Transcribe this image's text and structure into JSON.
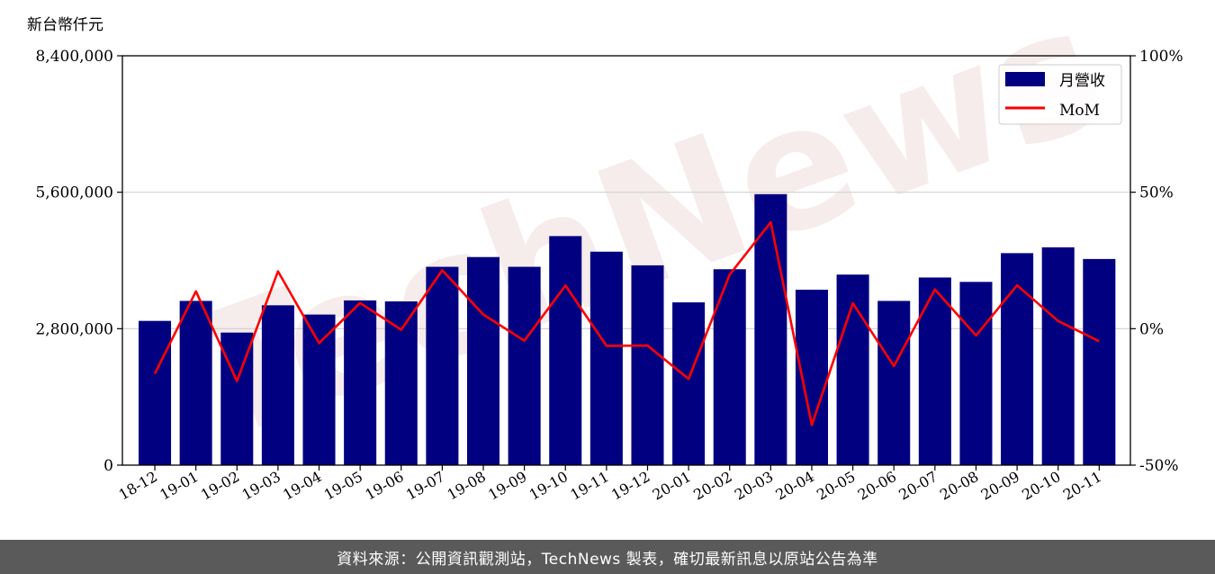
{
  "watermark": "TechNews",
  "footer": {
    "text": "資料來源：公開資訊觀測站，TechNews 製表，確切最新訊息以原站公告為準"
  },
  "chart_data": {
    "type": "bar",
    "unit_label": "新台幣仟元",
    "categories": [
      "18-12",
      "19-01",
      "19-02",
      "19-03",
      "19-04",
      "19-05",
      "19-06",
      "19-07",
      "19-08",
      "19-09",
      "19-10",
      "19-11",
      "19-12",
      "20-01",
      "20-02",
      "20-03",
      "20-04",
      "20-05",
      "20-06",
      "20-07",
      "20-08",
      "20-09",
      "20-10",
      "20-11"
    ],
    "series": [
      {
        "name": "月營收",
        "axis": "left",
        "kind": "bar",
        "color": "#000080",
        "values": [
          2960000,
          3370000,
          2720000,
          3280000,
          3090000,
          3380000,
          3360000,
          4070000,
          4270000,
          4070000,
          4700000,
          4380000,
          4100000,
          3340000,
          4020000,
          5560000,
          3600000,
          3910000,
          3370000,
          3850000,
          3760000,
          4350000,
          4470000,
          4230000
        ]
      },
      {
        "name": "MoM",
        "axis": "right",
        "kind": "line",
        "color": "#ff0000",
        "values": [
          -16.5,
          13.7,
          -19.2,
          21,
          -5.3,
          9.4,
          -0.4,
          21.4,
          5.2,
          -4.4,
          15.8,
          -6.3,
          -6.2,
          -18.4,
          19.8,
          39,
          -35.3,
          9.3,
          -13.7,
          14.4,
          -2.5,
          15.9,
          2.8,
          -4.6
        ]
      }
    ],
    "y_left": {
      "ylim": [
        0,
        8400000
      ],
      "ticks": [
        0,
        2800000,
        5600000,
        8400000
      ],
      "tick_labels": [
        "0",
        "2,800,000",
        "5,600,000",
        "8,400,000"
      ]
    },
    "y_right": {
      "ylim": [
        -50,
        100
      ],
      "ticks": [
        -50,
        0,
        50,
        100
      ],
      "tick_labels": [
        "-50%",
        "0%",
        "50%",
        "100%"
      ]
    },
    "grid": "horizontal",
    "legend_position": "top-right"
  }
}
